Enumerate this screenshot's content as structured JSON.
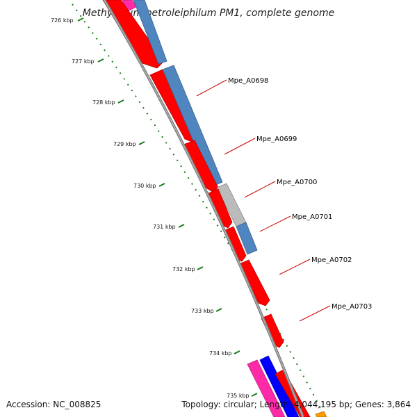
{
  "title": "Methylibium petroleiphilum PM1, complete genome",
  "footer": {
    "accession": "Accession: NC_008825",
    "summary": "Topology: circular; Length: 4,044,195 bp; Genes: 3,864"
  },
  "ticks": [
    "726 kbp",
    "727 kbp",
    "728 kbp",
    "729 kbp",
    "730 kbp",
    "731 kbp",
    "732 kbp",
    "733 kbp",
    "734 kbp",
    "735 kbp"
  ],
  "gene_labels": [
    "Mpe_A0698",
    "Mpe_A0699",
    "Mpe_A0700",
    "Mpe_A0701",
    "Mpe_A0702",
    "Mpe_A0703"
  ],
  "colors": {
    "cds_red": "#ff0000",
    "cds_blue": "#4f86bf",
    "cds_gray": "#bbbbbb",
    "pink": "#ff2aa8",
    "blue": "#0000ff",
    "orange": "#ff9900",
    "backbone": "#808080",
    "tick_green": "#1a7a1a",
    "label_red": "#cc0000"
  }
}
